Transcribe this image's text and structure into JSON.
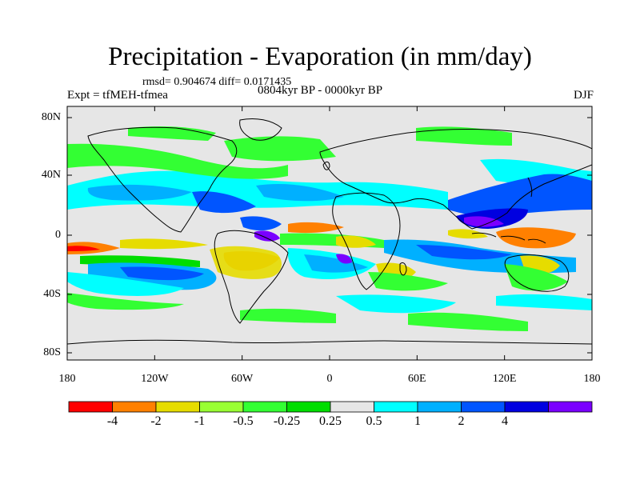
{
  "figure": {
    "title": "Precipitation - Evaporation (in mm/day)",
    "stats_text": "rmsd= 0.904674  diff= 0.0171435",
    "left_label": "Expt = tfMEH-tfmea",
    "center_label": "0804kyr BP - 0000kyr BP",
    "right_label": "DJF"
  },
  "map": {
    "lat_ticks": [
      "80N",
      "40N",
      "0",
      "40S",
      "80S"
    ],
    "lon_ticks": [
      "180",
      "120W",
      "60W",
      "0",
      "60E",
      "120E",
      "180"
    ],
    "background_color": "#e6e6e6"
  },
  "colorbar": {
    "colors": [
      "#ff0000",
      "#ff8000",
      "#e6dc00",
      "#99ff33",
      "#33ff33",
      "#00dd00",
      "#e6e6e6",
      "#00ffff",
      "#00b0ff",
      "#0055ff",
      "#0000e0",
      "#7a00ff"
    ],
    "labels": [
      "-4",
      "-2",
      "-1",
      "-0.5",
      "-0.25",
      "0.25",
      "0.5",
      "1",
      "2",
      "4"
    ],
    "levels": [
      -4,
      -2,
      -1,
      -0.5,
      -0.25,
      0.25,
      0.5,
      1,
      2,
      4
    ]
  }
}
